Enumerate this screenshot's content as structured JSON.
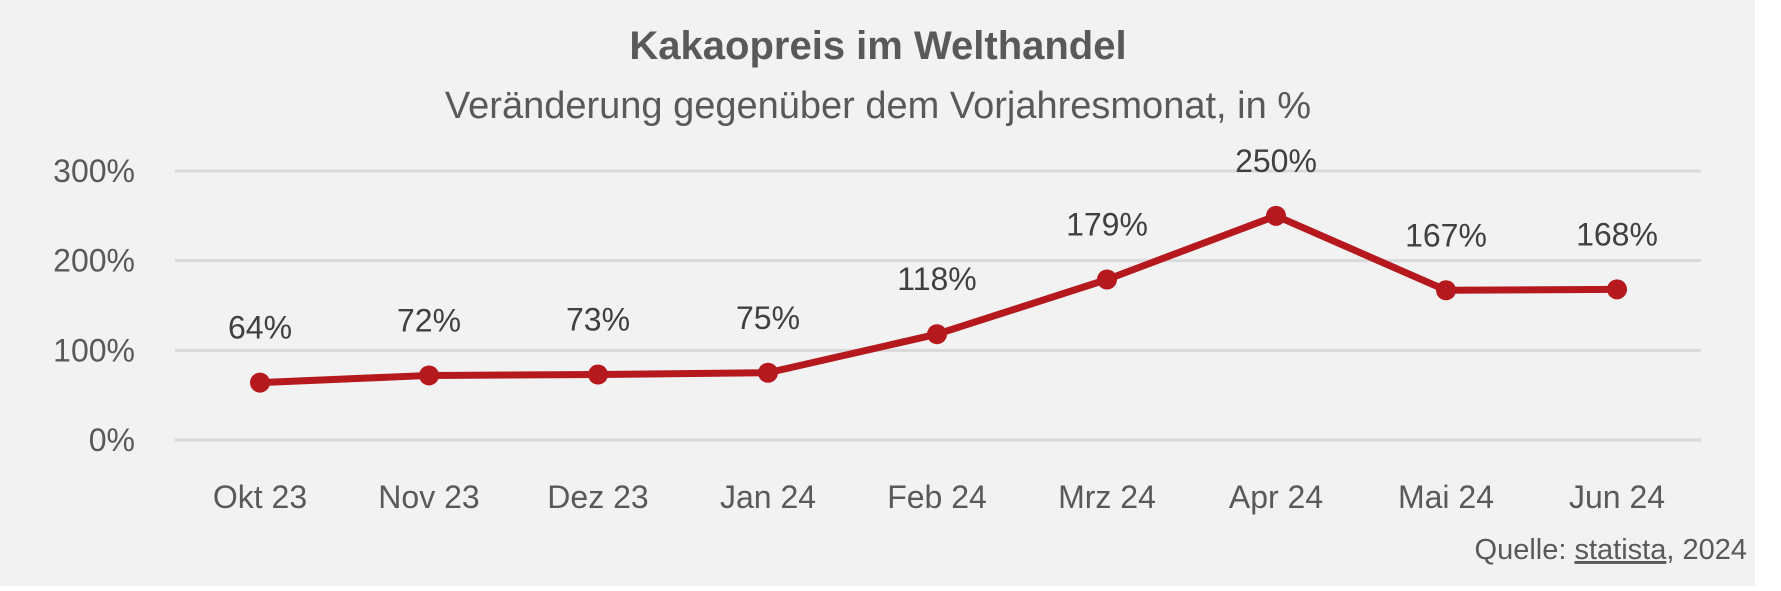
{
  "chart_data": {
    "type": "line",
    "title": "Kakaopreis im Welthandel",
    "subtitle": "Veränderung gegenüber dem Vorjahresmonat, in %",
    "categories": [
      "Okt 23",
      "Nov 23",
      "Dez 23",
      "Jan 24",
      "Feb 24",
      "Mrz 24",
      "Apr 24",
      "Mai 24",
      "Jun 24"
    ],
    "series": [
      {
        "name": "Kakaopreis",
        "values": [
          64,
          72,
          73,
          75,
          118,
          179,
          250,
          167,
          168
        ]
      }
    ],
    "data_labels": [
      "64%",
      "72%",
      "73%",
      "75%",
      "118%",
      "179%",
      "250%",
      "167%",
      "168%"
    ],
    "yticks": [
      0,
      100,
      200,
      300
    ],
    "ytick_labels": [
      "0%",
      "100%",
      "200%",
      "300%"
    ],
    "ylim": [
      0,
      300
    ],
    "xlabel": "",
    "ylabel": "",
    "grid": true,
    "legend": "none",
    "line_color": "#b5191e",
    "source": {
      "prefix": "Quelle: ",
      "link": "statista",
      "suffix": ", 2024"
    }
  }
}
